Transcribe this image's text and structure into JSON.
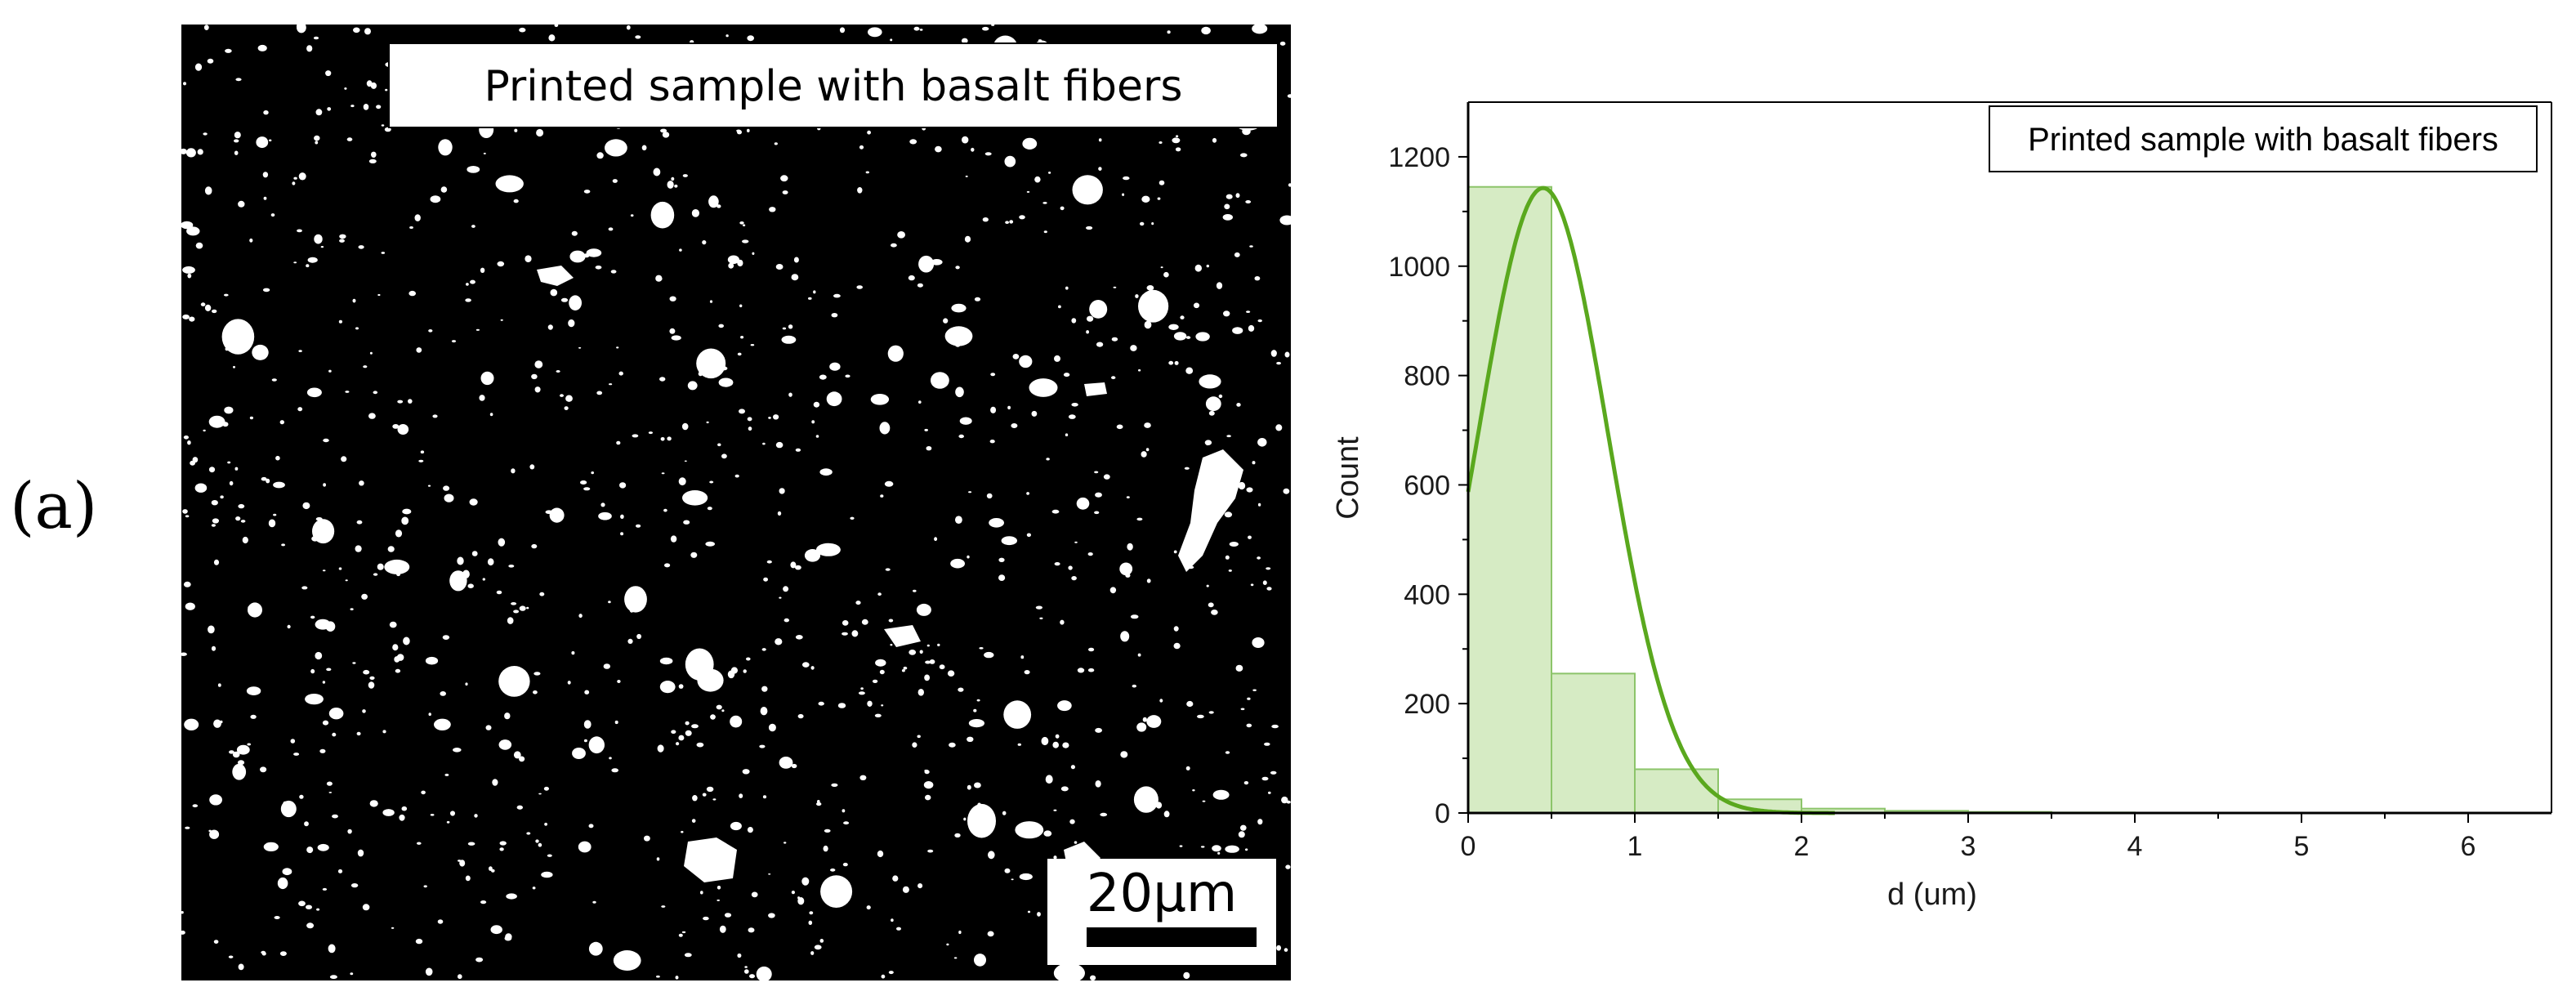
{
  "panel_label": "(a)",
  "micrograph": {
    "caption": "Printed sample with basalt fibers",
    "scale_bar_label": "20µm",
    "background_color": "#000000",
    "particle_color": "#ffffff"
  },
  "chart_data": {
    "type": "bar",
    "title": "",
    "xlabel": "d (um)",
    "ylabel": "Count",
    "legend": [
      "Printed sample with basalt fibers"
    ],
    "legend_position": "top-right",
    "xlim": [
      0,
      6.5
    ],
    "ylim": [
      0,
      1300
    ],
    "xticks": [
      0,
      1,
      2,
      3,
      4,
      5,
      6
    ],
    "yticks": [
      0,
      200,
      400,
      600,
      800,
      1000,
      1200
    ],
    "grid": false,
    "bar_color": "#d6ebc4",
    "bar_edge_color": "#8cc46a",
    "curve_color": "#5aa81e",
    "bins": [
      {
        "x0": 0.0,
        "x1": 0.5,
        "count": 1145
      },
      {
        "x0": 0.5,
        "x1": 1.0,
        "count": 255
      },
      {
        "x0": 1.0,
        "x1": 1.5,
        "count": 80
      },
      {
        "x0": 1.5,
        "x1": 2.0,
        "count": 25
      },
      {
        "x0": 2.0,
        "x1": 2.5,
        "count": 8
      },
      {
        "x0": 2.5,
        "x1": 3.0,
        "count": 4
      },
      {
        "x0": 3.0,
        "x1": 3.5,
        "count": 2
      },
      {
        "x0": 3.5,
        "x1": 4.0,
        "count": 1
      }
    ],
    "fit_curve": {
      "type": "normal",
      "peak_x": 0.45,
      "peak_y": 1143,
      "sigma": 0.39,
      "x_range": [
        0,
        2.2
      ]
    }
  }
}
